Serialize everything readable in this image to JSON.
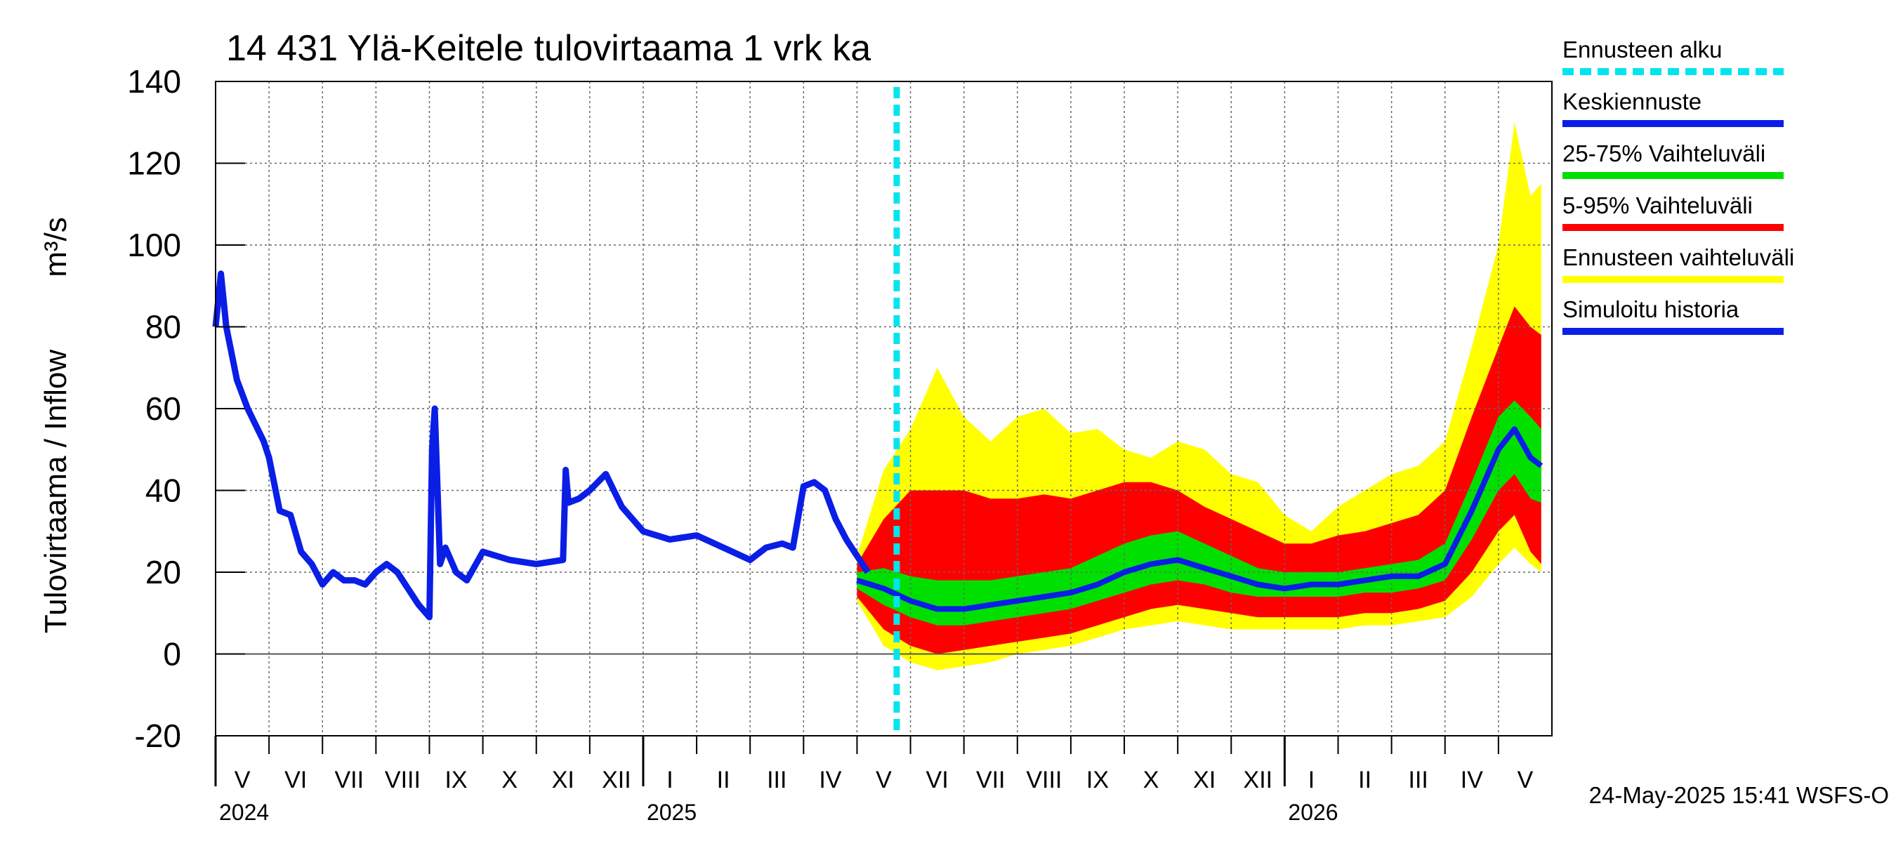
{
  "chart_data": {
    "type": "area",
    "title": "14 431 Ylä-Keitele tulovirtaama 1 vrk ka",
    "ylabel": "Tulovirtaama / Inflow",
    "yunit": "m³/s",
    "ylim": [
      -20,
      140
    ],
    "yticks": [
      -20,
      0,
      20,
      40,
      60,
      80,
      100,
      120,
      140
    ],
    "grid": true,
    "legend_position": "right",
    "forecast_start": "2025-05-24",
    "timestamp": "24-May-2025 15:41 WSFS-O",
    "years": [
      {
        "label": "2024",
        "month_index": 0
      },
      {
        "label": "2025",
        "month_index": 8
      },
      {
        "label": "2026",
        "month_index": 20
      }
    ],
    "months": [
      "V",
      "VI",
      "VII",
      "VIII",
      "IX",
      "X",
      "XI",
      "XII",
      "I",
      "II",
      "III",
      "IV",
      "V",
      "VI",
      "VII",
      "VIII",
      "IX",
      "X",
      "XI",
      "XII",
      "I",
      "II",
      "III",
      "IV",
      "V"
    ],
    "legend": [
      {
        "label": "Ennusteen alku",
        "color": "#00e5ee",
        "style": "dashed"
      },
      {
        "label": "Keskiennuste",
        "color": "#0a1ee6",
        "style": "solid"
      },
      {
        "label": "25-75% Vaihteluväli",
        "color": "#00e000",
        "style": "solid"
      },
      {
        "label": "5-95% Vaihteluväli",
        "color": "#ff0000",
        "style": "solid"
      },
      {
        "label": "Ennusteen vaihteluväli",
        "color": "#ffff00",
        "style": "solid"
      },
      {
        "label": "Simuloitu historia",
        "color": "#0a1ee6",
        "style": "solid"
      }
    ],
    "history": {
      "name": "Simuloitu historia",
      "x_month": [
        0,
        0.1,
        0.2,
        0.4,
        0.6,
        0.9,
        1.0,
        1.2,
        1.4,
        1.6,
        1.8,
        2.0,
        2.2,
        2.4,
        2.6,
        2.8,
        3.0,
        3.2,
        3.4,
        3.6,
        3.8,
        4.0,
        4.05,
        4.1,
        4.2,
        4.3,
        4.5,
        4.7,
        5.0,
        5.5,
        6.0,
        6.5,
        6.55,
        6.6,
        6.8,
        7.0,
        7.3,
        7.6,
        8.0,
        8.5,
        9.0,
        9.5,
        10.0,
        10.3,
        10.6,
        10.8,
        11.0,
        11.2,
        11.4,
        11.6,
        11.8,
        12.0,
        12.2
      ],
      "y": [
        80,
        93,
        80,
        67,
        60,
        52,
        48,
        35,
        34,
        25,
        22,
        17,
        20,
        18,
        18,
        17,
        20,
        22,
        20,
        16,
        12,
        9,
        50,
        60,
        22,
        26,
        20,
        18,
        25,
        23,
        22,
        23,
        45,
        37,
        38,
        40,
        44,
        36,
        30,
        28,
        29,
        26,
        23,
        26,
        27,
        26,
        41,
        42,
        40,
        33,
        28,
        24,
        20
      ]
    },
    "forecast": {
      "x_month": [
        12.0,
        12.5,
        13.0,
        13.5,
        14.0,
        14.5,
        15.0,
        15.5,
        16.0,
        16.5,
        17.0,
        17.5,
        18.0,
        18.5,
        19.0,
        19.5,
        20.0,
        20.5,
        21.0,
        21.5,
        22.0,
        22.5,
        23.0,
        23.5,
        24.0,
        24.3,
        24.6,
        24.8
      ],
      "median": [
        18,
        16,
        13,
        11,
        11,
        12,
        13,
        14,
        15,
        17,
        20,
        22,
        23,
        21,
        19,
        17,
        16,
        17,
        17,
        18,
        19,
        19,
        22,
        35,
        50,
        55,
        48,
        46
      ],
      "p25": [
        16,
        12,
        9,
        7,
        7,
        8,
        9,
        10,
        11,
        13,
        15,
        17,
        18,
        17,
        15,
        14,
        14,
        14,
        14,
        15,
        15,
        16,
        18,
        28,
        40,
        44,
        38,
        37
      ],
      "p75": [
        20,
        21,
        19,
        18,
        18,
        18,
        19,
        20,
        21,
        24,
        27,
        29,
        30,
        27,
        24,
        21,
        20,
        20,
        20,
        21,
        22,
        23,
        27,
        42,
        58,
        62,
        58,
        55
      ],
      "p5": [
        14,
        6,
        2,
        0,
        1,
        2,
        3,
        4,
        5,
        7,
        9,
        11,
        12,
        11,
        10,
        9,
        9,
        9,
        9,
        10,
        10,
        11,
        13,
        20,
        30,
        34,
        25,
        22
      ],
      "p95": [
        22,
        33,
        40,
        40,
        40,
        38,
        38,
        39,
        38,
        40,
        42,
        42,
        40,
        36,
        33,
        30,
        27,
        27,
        29,
        30,
        32,
        34,
        40,
        58,
        75,
        85,
        80,
        78
      ],
      "min": [
        13,
        2,
        -2,
        -4,
        -3,
        -2,
        0,
        1,
        2,
        4,
        6,
        7,
        8,
        7,
        6,
        6,
        6,
        6,
        6,
        7,
        7,
        8,
        9,
        14,
        22,
        26,
        22,
        20
      ],
      "max": [
        24,
        45,
        55,
        70,
        58,
        52,
        58,
        60,
        54,
        55,
        50,
        48,
        52,
        50,
        44,
        42,
        34,
        30,
        36,
        40,
        44,
        46,
        52,
        75,
        100,
        130,
        112,
        115
      ]
    }
  }
}
